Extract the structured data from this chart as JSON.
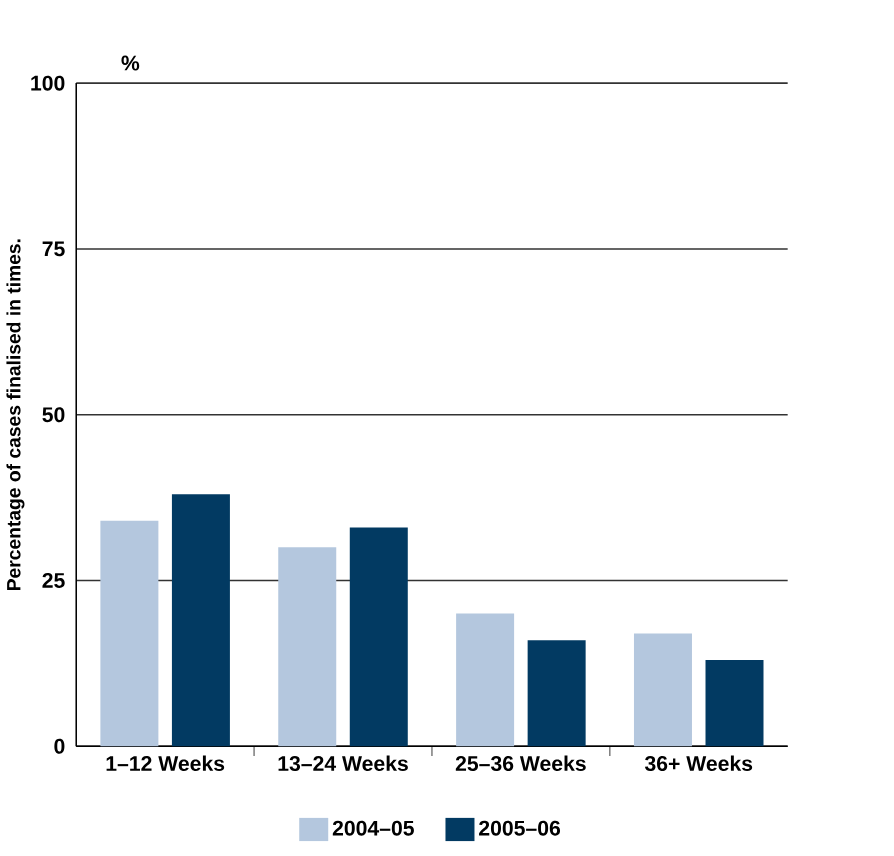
{
  "chart_data": {
    "type": "bar",
    "ylabel": "Percentage of cases finalised in times.",
    "annotations": [
      "%"
    ],
    "categories": [
      "1–12 Weeks",
      "13–24 Weeks",
      "25–36 Weeks",
      "36+ Weeks"
    ],
    "series": [
      {
        "name": "2004–05",
        "color": "#b4c7de",
        "values": [
          34,
          30,
          20,
          17
        ]
      },
      {
        "name": "2005–06",
        "color": "#023a62",
        "values": [
          38,
          33,
          16,
          13
        ]
      }
    ],
    "ylim": [
      0,
      100
    ],
    "yticks": [
      0,
      25,
      50,
      75,
      100
    ],
    "grid": "y",
    "legend": "bottom"
  }
}
